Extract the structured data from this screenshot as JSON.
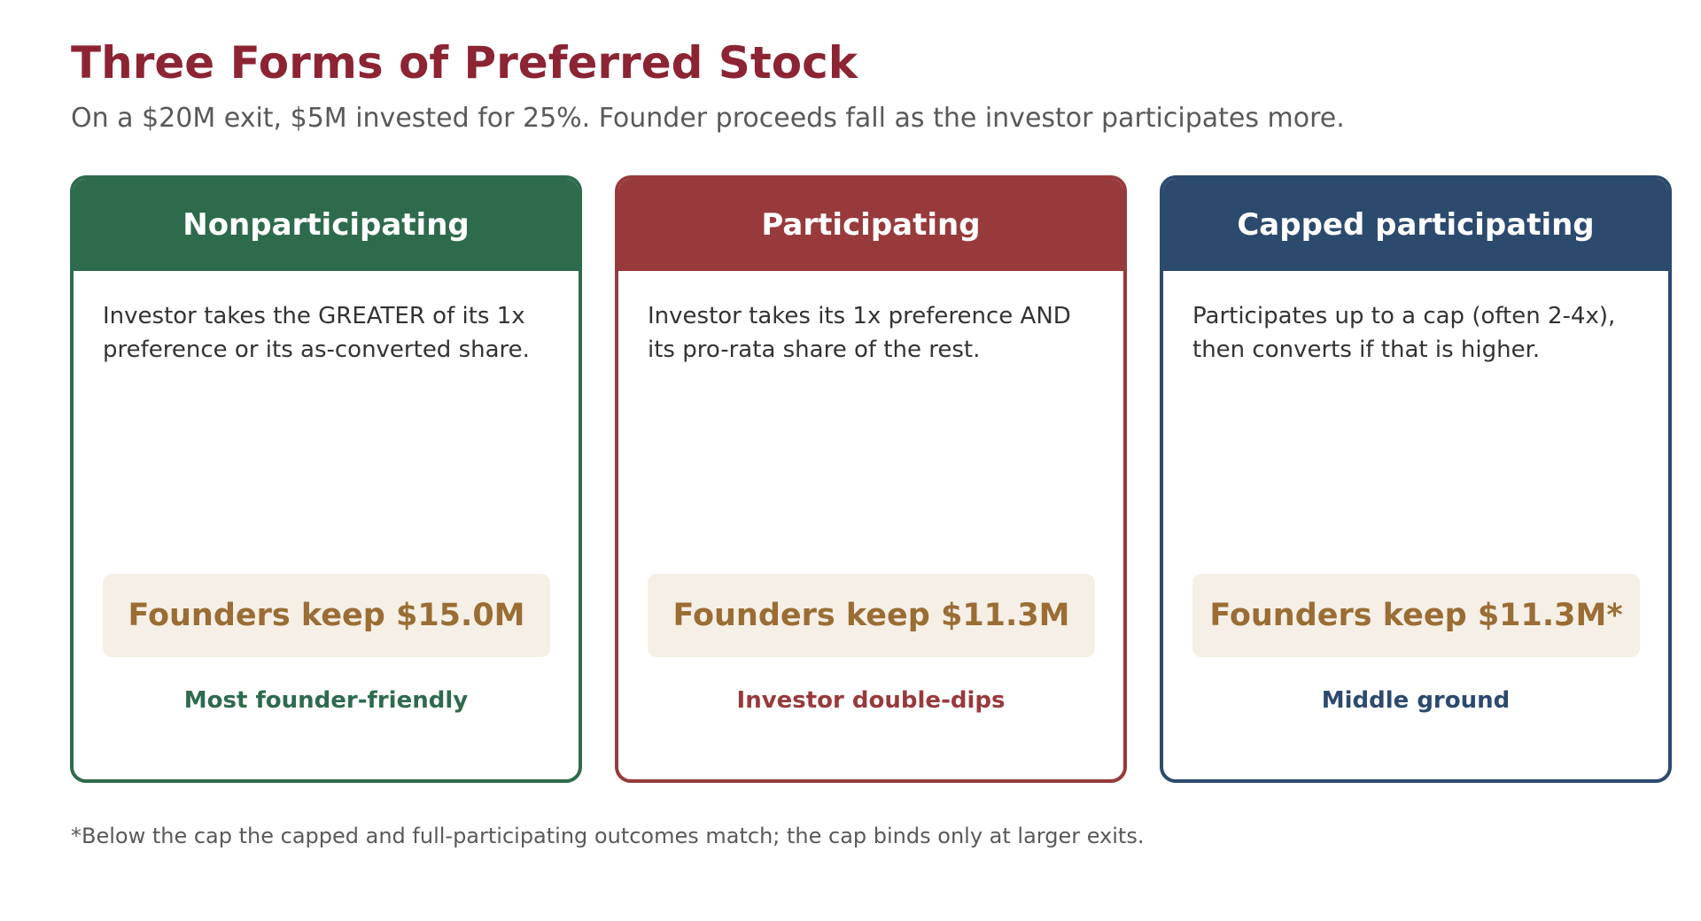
{
  "title": "Three Forms of Preferred Stock",
  "subtitle": "On a $20M exit, $5M invested for 25%. Founder proceeds fall as the investor participates more.",
  "cards": [
    {
      "heading": "Nonparticipating",
      "description": "Investor takes the GREATER of its 1x preference or its as-converted share.",
      "founders_keep": "Founders keep $15.0M",
      "verdict": "Most founder-friendly",
      "color": "#2e6b4d"
    },
    {
      "heading": "Participating",
      "description": "Investor takes its 1x preference AND its pro-rata share of the rest.",
      "founders_keep": "Founders keep $11.3M",
      "verdict": "Investor double-dips",
      "color": "#983a3c"
    },
    {
      "heading": "Capped participating",
      "description": "Participates up to a cap (often 2-4x), then converts if that is higher.",
      "founders_keep": "Founders keep $11.3M*",
      "verdict": "Middle ground",
      "color": "#2c4a6e"
    }
  ],
  "footnote": "*Below the cap the capped and full-participating outcomes match; the cap binds only at larger exits."
}
